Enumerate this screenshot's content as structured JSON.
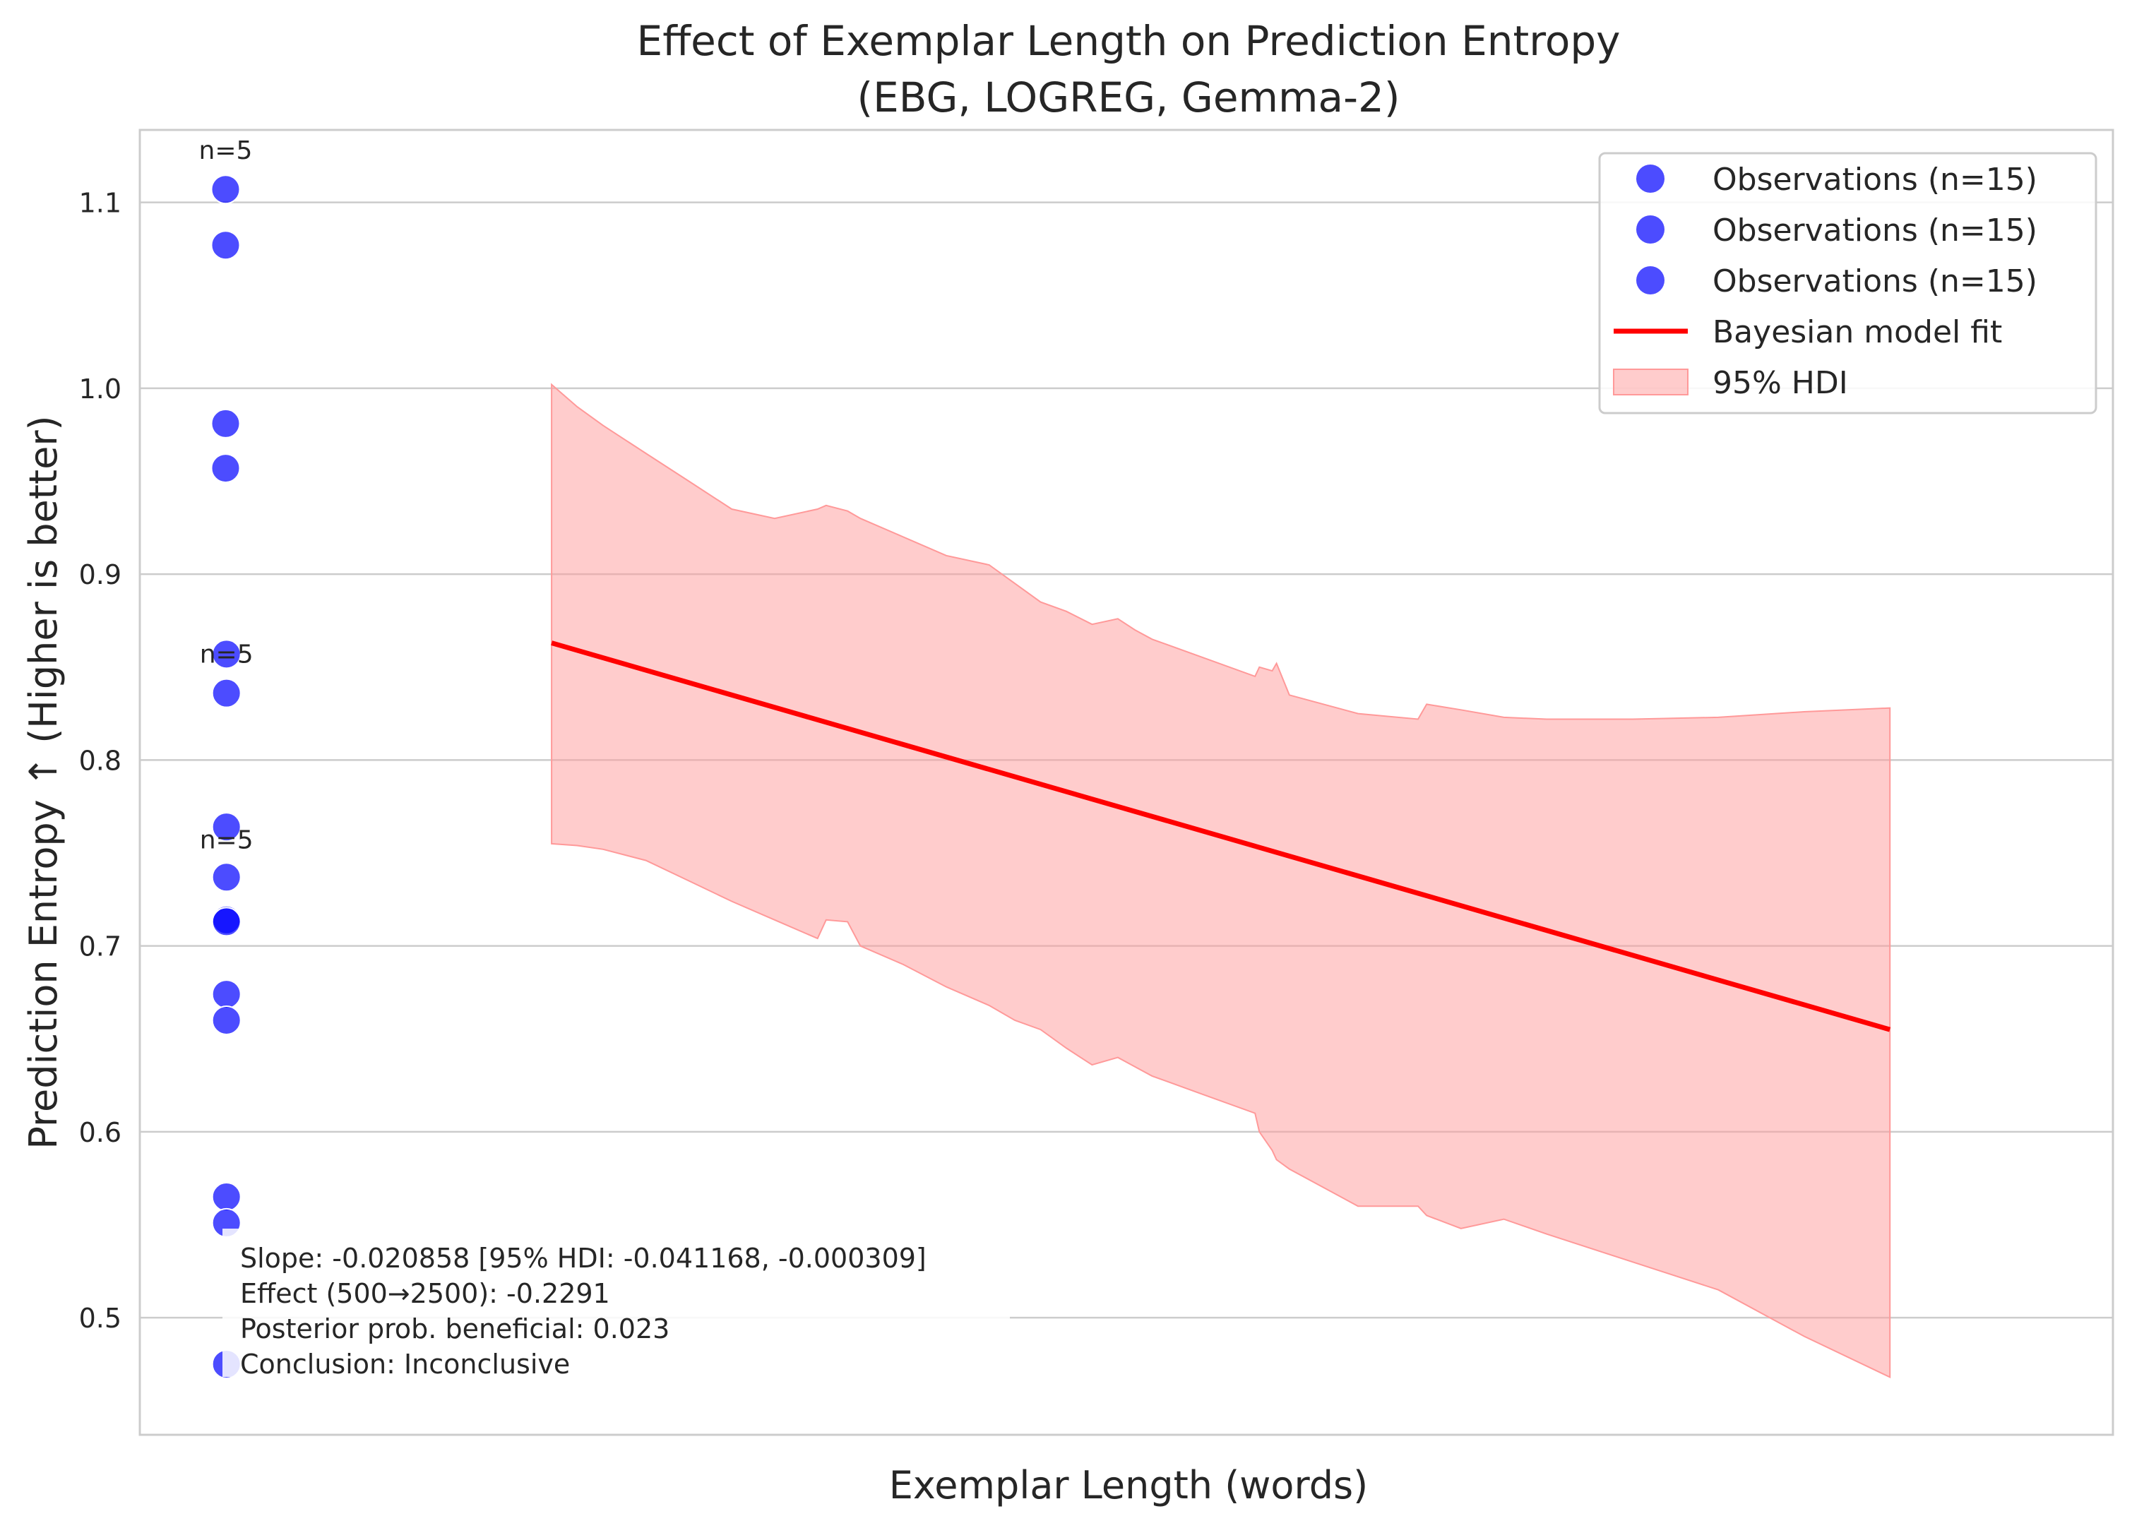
{
  "chart_data": {
    "type": "scatter",
    "title": "Effect of Exemplar Length on Prediction Entropy",
    "subtitle": "(EBG, LOGREG, Gemma-2)",
    "xlabel": "Exemplar Length (words)",
    "ylabel": "Prediction Entropy ↑ (Higher is better)",
    "ylim": [
      0.437,
      1.139
    ],
    "y_ticks": [
      0.5,
      0.6,
      0.7,
      0.8,
      0.9,
      1.0,
      1.1
    ],
    "y_tick_labels": [
      "0.5",
      "0.6",
      "0.7",
      "0.8",
      "0.9",
      "1.0",
      "1.1"
    ],
    "xlim": [
      260,
      2560
    ],
    "x_ticks_visible": false,
    "grid": "horizontal",
    "legend_position": "top-right",
    "colors": {
      "observations": "#0000ff",
      "fit": "#ff0000",
      "hdi_fill": "#ff9999",
      "grid": "#cccccc",
      "axes": "#cccccc"
    },
    "legend": [
      {
        "label": "Observations (n=15)",
        "kind": "marker"
      },
      {
        "label": "Observations (n=15)",
        "kind": "marker"
      },
      {
        "label": "Observations (n=15)",
        "kind": "marker"
      },
      {
        "label": "Bayesian model fit",
        "kind": "line"
      },
      {
        "label": "95% HDI",
        "kind": "patch"
      }
    ],
    "group_labels": [
      {
        "text": "n=5",
        "x": 360,
        "y": 1.128
      },
      {
        "text": "n=5",
        "x": 361,
        "y": 0.857
      },
      {
        "text": "n=5",
        "x": 361,
        "y": 0.757
      }
    ],
    "observations": [
      {
        "x": 360,
        "y": 1.107
      },
      {
        "x": 360,
        "y": 1.077
      },
      {
        "x": 360,
        "y": 0.981
      },
      {
        "x": 360,
        "y": 0.957
      },
      {
        "x": 361,
        "y": 0.857
      },
      {
        "x": 361,
        "y": 0.836
      },
      {
        "x": 361,
        "y": 0.764
      },
      {
        "x": 361,
        "y": 0.737
      },
      {
        "x": 361,
        "y": 0.714
      },
      {
        "x": 361,
        "y": 0.713
      },
      {
        "x": 361,
        "y": 0.674
      },
      {
        "x": 361,
        "y": 0.66
      },
      {
        "x": 361,
        "y": 0.565
      },
      {
        "x": 361,
        "y": 0.551
      },
      {
        "x": 361,
        "y": 0.475
      }
    ],
    "fit": {
      "x": [
        740,
        2300
      ],
      "y": [
        0.863,
        0.655
      ]
    },
    "hdi": {
      "x": [
        740,
        770,
        800,
        850,
        900,
        950,
        1000,
        1050,
        1060,
        1085,
        1100,
        1150,
        1200,
        1250,
        1280,
        1310,
        1340,
        1370,
        1400,
        1420,
        1440,
        1500,
        1560,
        1565,
        1580,
        1585,
        1600,
        1680,
        1750,
        1760,
        1800,
        1850,
        1900,
        2000,
        2100,
        2200,
        2300
      ],
      "lower": [
        0.755,
        0.754,
        0.752,
        0.746,
        0.735,
        0.724,
        0.714,
        0.704,
        0.714,
        0.713,
        0.7,
        0.69,
        0.678,
        0.668,
        0.66,
        0.655,
        0.645,
        0.636,
        0.64,
        0.635,
        0.63,
        0.62,
        0.61,
        0.6,
        0.59,
        0.585,
        0.58,
        0.56,
        0.56,
        0.555,
        0.548,
        0.553,
        0.545,
        0.53,
        0.515,
        0.49,
        0.468
      ],
      "upper": [
        1.002,
        0.99,
        0.98,
        0.965,
        0.95,
        0.935,
        0.93,
        0.935,
        0.937,
        0.934,
        0.93,
        0.92,
        0.91,
        0.905,
        0.895,
        0.885,
        0.88,
        0.873,
        0.876,
        0.87,
        0.865,
        0.855,
        0.845,
        0.85,
        0.848,
        0.852,
        0.835,
        0.825,
        0.822,
        0.83,
        0.827,
        0.823,
        0.822,
        0.822,
        0.823,
        0.826,
        0.828
      ]
    },
    "annotation": [
      "Slope: -0.020858 [95% HDI: -0.041168, -0.000309]",
      "Effect (500→2500): -0.2291",
      "Posterior prob. beneficial: 0.023",
      "Conclusion: Inconclusive"
    ]
  }
}
